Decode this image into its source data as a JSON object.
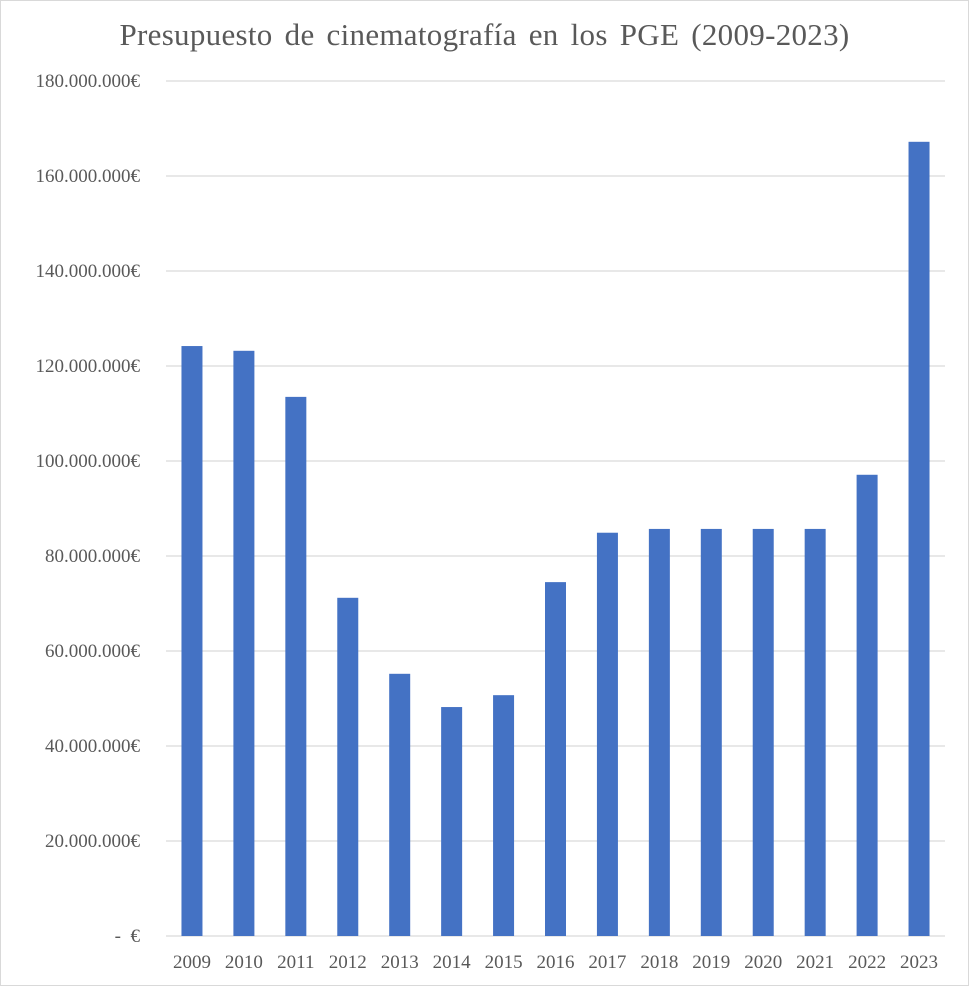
{
  "chart_data": {
    "type": "bar",
    "title": "Presupuesto de cinematografía en los PGE (2009-2023)",
    "categories": [
      "2009",
      "2010",
      "2011",
      "2012",
      "2013",
      "2014",
      "2015",
      "2016",
      "2017",
      "2018",
      "2019",
      "2020",
      "2021",
      "2022",
      "2023"
    ],
    "values": [
      124200000,
      123200000,
      113500000,
      71200000,
      55200000,
      48200000,
      50700000,
      74500000,
      84900000,
      85700000,
      85700000,
      85700000,
      85700000,
      97100000,
      167200000
    ],
    "ylim": [
      0,
      180000000
    ],
    "yticks": [
      0,
      20000000,
      40000000,
      60000000,
      80000000,
      100000000,
      120000000,
      140000000,
      160000000,
      180000000
    ],
    "ytick_labels": [
      "-  €",
      "20.000.000€",
      "40.000.000€",
      "60.000.000€",
      "80.000.000€",
      "100.000.000€",
      "120.000.000€",
      "140.000.000€",
      "160.000.000€",
      "180.000.000€"
    ],
    "xlabel": "",
    "ylabel": "",
    "grid": true,
    "legend": "none",
    "bar_color": "#4472c4"
  }
}
